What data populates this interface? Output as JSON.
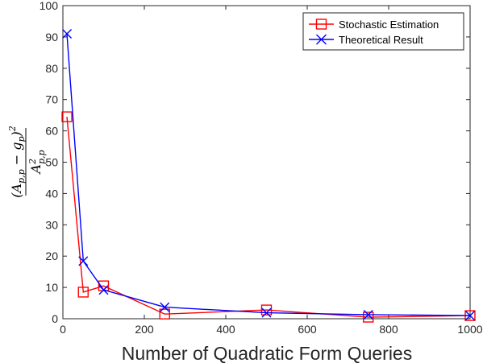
{
  "chart_data": {
    "type": "line",
    "xlabel": "Number of Quadratic Form Queries",
    "ylabel": {
      "numerator": "(A",
      "numerator_sub": "p,p",
      "numerator_mid": " − g",
      "numerator_mid_sub": "p",
      "numerator_end": ")",
      "numerator_sup": "2",
      "denominator": "A",
      "denominator_sup": "2",
      "denominator_sub": "p,p"
    },
    "xlim": [
      0,
      1000
    ],
    "ylim": [
      0,
      100
    ],
    "xticks": [
      0,
      200,
      400,
      600,
      800,
      1000
    ],
    "yticks": [
      0,
      10,
      20,
      30,
      40,
      50,
      60,
      70,
      80,
      90,
      100
    ],
    "grid": false,
    "legend_position": "top-right",
    "series": [
      {
        "name": "Stochastic Estimation",
        "color": "#ff0000",
        "marker": "square",
        "x": [
          10,
          50,
          100,
          250,
          500,
          750,
          1000
        ],
        "y": [
          64.5,
          8.5,
          10.5,
          1.5,
          2.8,
          0.5,
          1.0
        ]
      },
      {
        "name": "Theoretical Result",
        "color": "#0000ff",
        "marker": "x",
        "x": [
          10,
          50,
          100,
          250,
          500,
          750,
          1000
        ],
        "y": [
          91.0,
          18.4,
          9.2,
          3.7,
          1.9,
          1.3,
          1.0
        ]
      }
    ]
  }
}
